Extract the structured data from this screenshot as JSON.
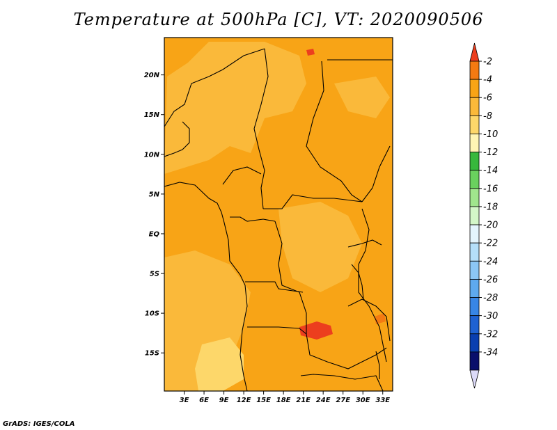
{
  "title": "Temperature at 500hPa [C], VT: 2020090506",
  "credit": "GrADS: IGES/COLA",
  "map": {
    "lat_ticks": [
      "20N",
      "15N",
      "10N",
      "5N",
      "EQ",
      "5S",
      "10S",
      "15S"
    ],
    "lat_values": [
      20,
      15,
      10,
      5,
      0,
      -5,
      -10,
      -15
    ],
    "lon_ticks": [
      "3E",
      "6E",
      "9E",
      "12E",
      "15E",
      "18E",
      "21E",
      "24E",
      "27E",
      "30E",
      "33E"
    ],
    "lon_values": [
      3,
      6,
      9,
      12,
      15,
      18,
      21,
      24,
      27,
      30,
      33
    ]
  },
  "colorbar": {
    "labels": [
      "-2",
      "-4",
      "-6",
      "-8",
      "-10",
      "-12",
      "-14",
      "-16",
      "-18",
      "-20",
      "-22",
      "-24",
      "-26",
      "-28",
      "-30",
      "-32",
      "-34"
    ],
    "colors": [
      "#ec3e1e",
      "#f47a12",
      "#f8a416",
      "#fab93a",
      "#fdd76a",
      "#fff5b4",
      "#37b83c",
      "#6ad15e",
      "#a0e68d",
      "#d3f7c8",
      "#e4f5fd",
      "#b5dff9",
      "#8cc7f5",
      "#5ea9ee",
      "#3886e6",
      "#1f62d2",
      "#0a3fb0",
      "#0a0f6b",
      "#dcdaf8"
    ]
  }
}
